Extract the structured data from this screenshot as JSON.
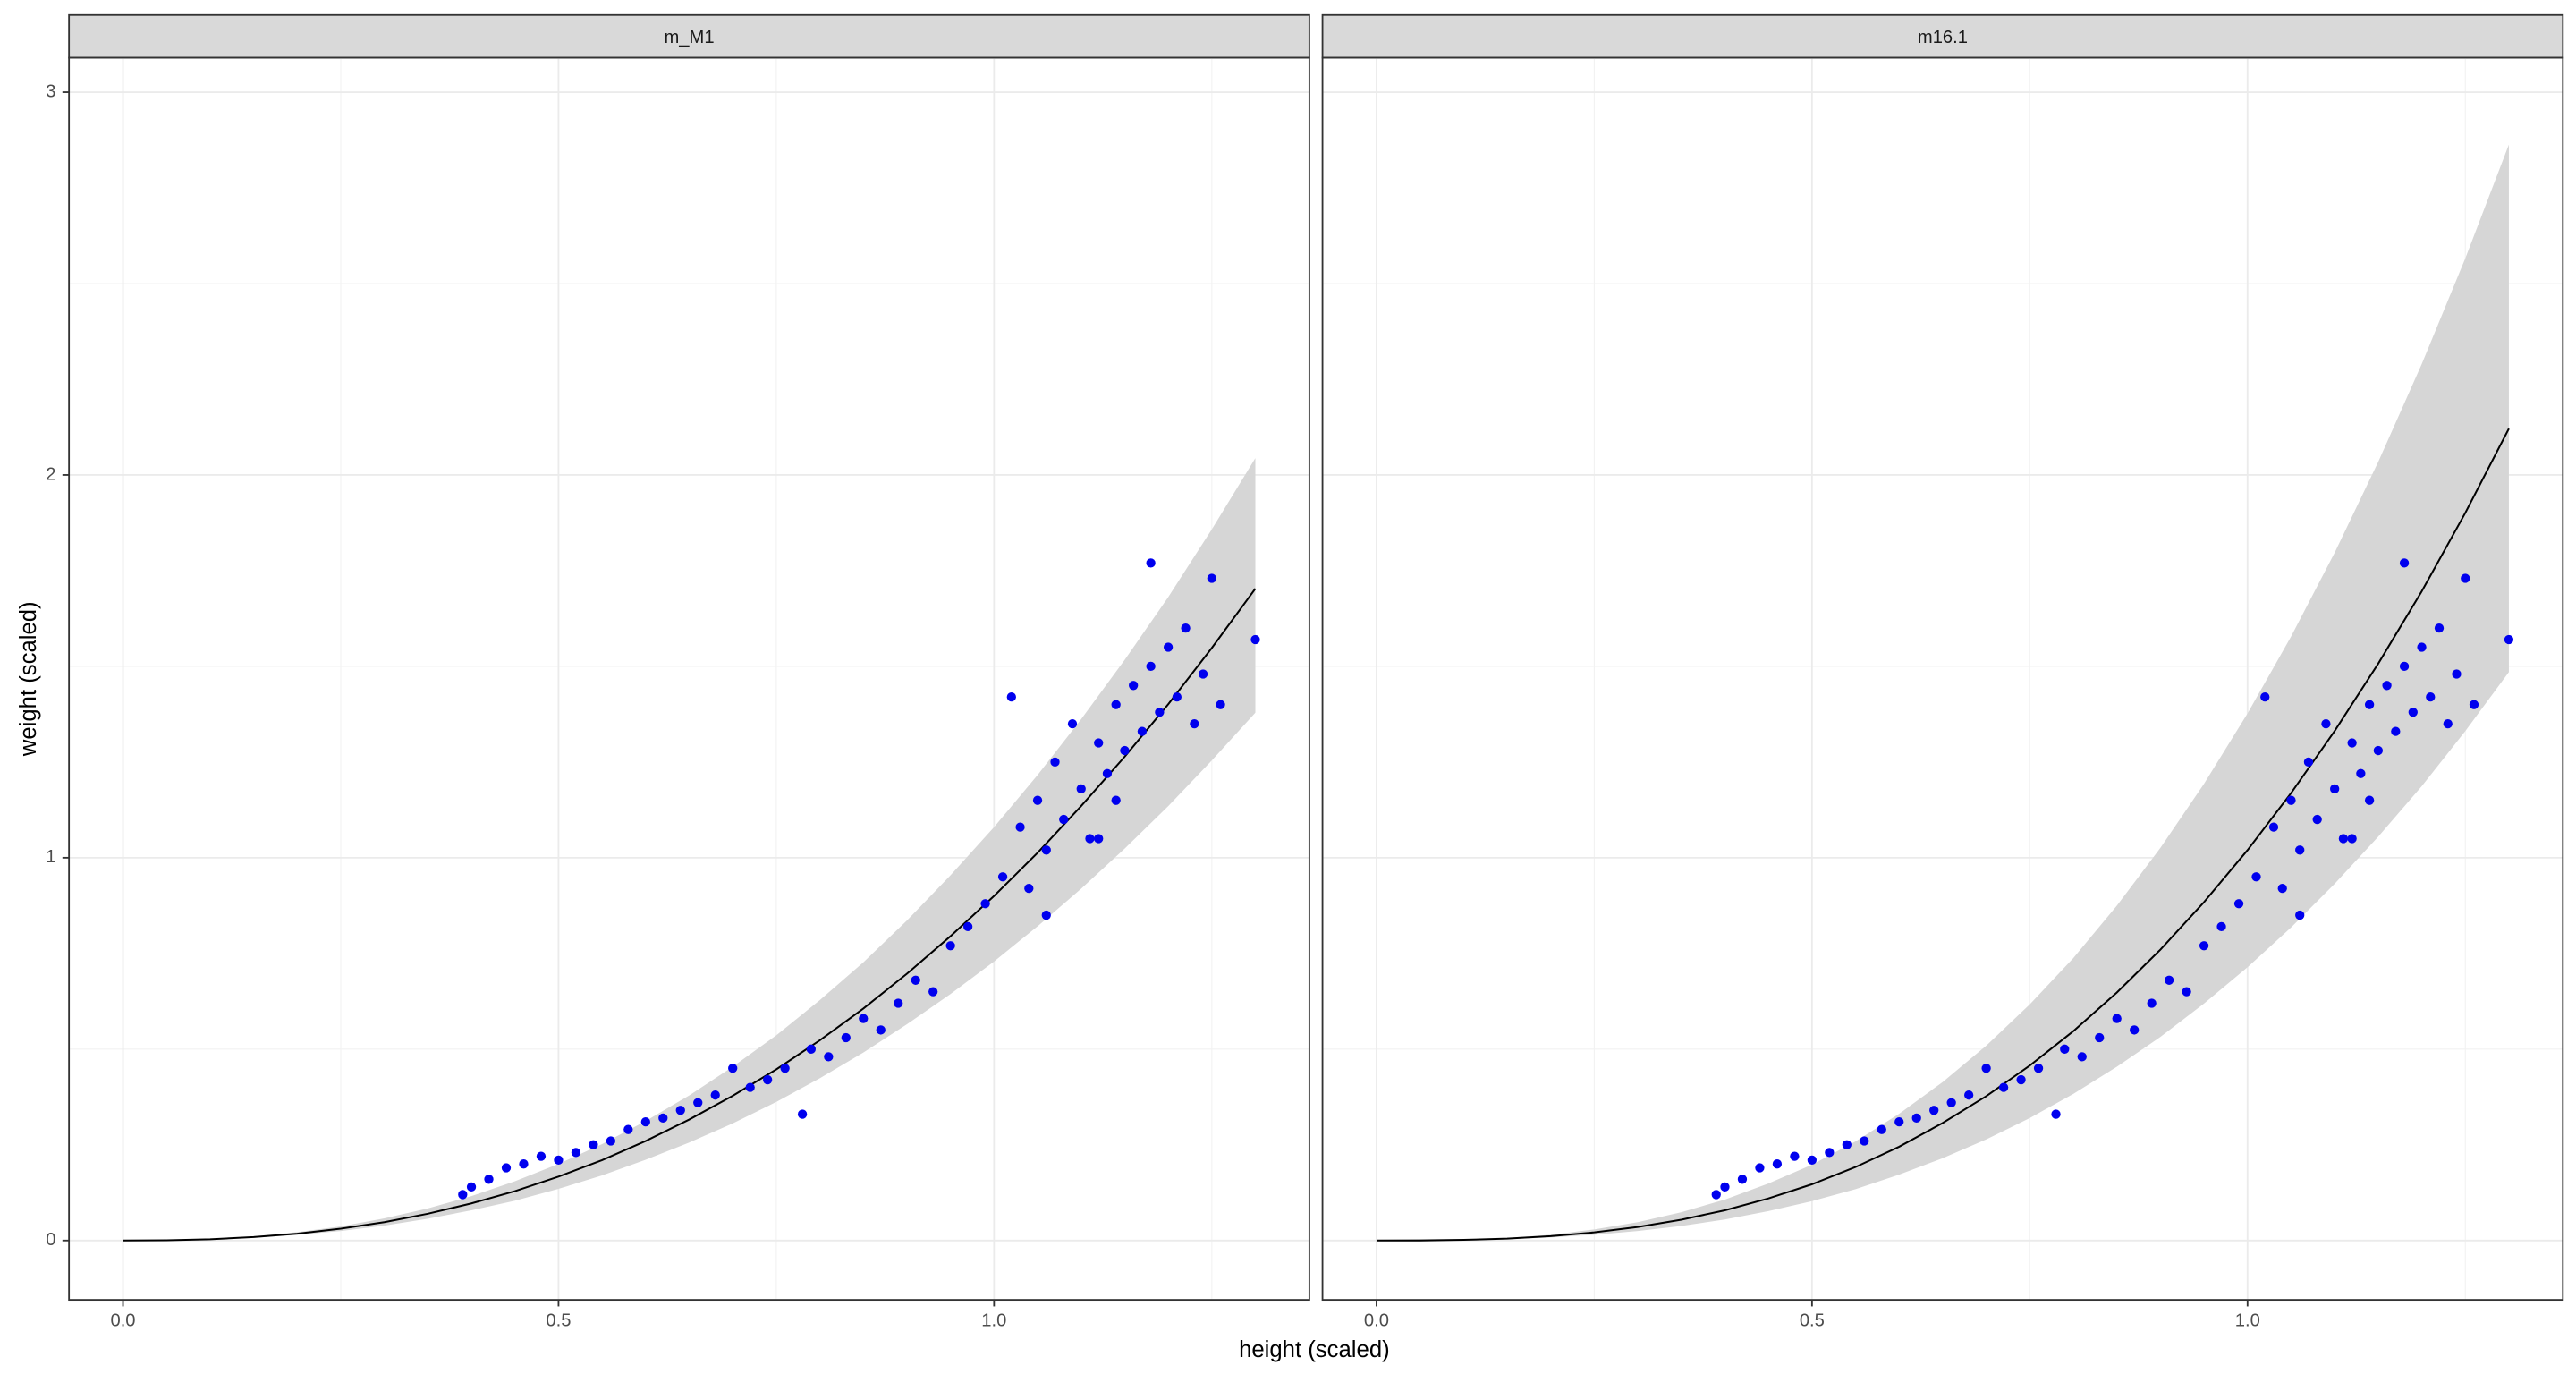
{
  "xlabel": "height (scaled)",
  "ylabel": "weight (scaled)",
  "chart_data": [
    {
      "type": "scatter",
      "title": "m_M1",
      "xlim": [
        -0.062,
        1.362
      ],
      "ylim": [
        -0.155,
        3.09
      ],
      "xticks": [
        {
          "value": 0,
          "label": "0.0"
        },
        {
          "value": 0.5,
          "label": "0.5"
        },
        {
          "value": 1,
          "label": "1.0"
        }
      ],
      "yticks": [
        0,
        1,
        2,
        3
      ],
      "grid": true,
      "points": {
        "color": "#0000ee",
        "x": [
          0.39,
          0.4,
          0.42,
          0.44,
          0.46,
          0.48,
          0.5,
          0.52,
          0.54,
          0.56,
          0.58,
          0.6,
          0.62,
          0.64,
          0.66,
          0.68,
          0.7,
          0.72,
          0.74,
          0.76,
          0.78,
          0.79,
          0.81,
          0.83,
          0.85,
          0.87,
          0.89,
          0.91,
          0.93,
          0.95,
          0.97,
          0.99,
          1.01,
          1.02,
          1.03,
          1.04,
          1.05,
          1.06,
          1.07,
          1.08,
          1.09,
          1.1,
          1.11,
          1.12,
          1.13,
          1.14,
          1.15,
          1.16,
          1.17,
          1.18,
          1.19,
          1.2,
          1.21,
          1.22,
          1.23,
          1.18,
          1.24,
          1.25,
          1.26,
          1.3,
          1.12,
          1.06,
          1.14
        ],
        "values": [
          0.12,
          0.14,
          0.16,
          0.19,
          0.2,
          0.22,
          0.21,
          0.23,
          0.25,
          0.26,
          0.29,
          0.31,
          0.32,
          0.34,
          0.36,
          0.38,
          0.45,
          0.4,
          0.42,
          0.45,
          0.33,
          0.5,
          0.48,
          0.53,
          0.58,
          0.55,
          0.62,
          0.68,
          0.65,
          0.77,
          0.82,
          0.88,
          0.95,
          1.42,
          1.08,
          0.92,
          1.15,
          1.02,
          1.25,
          1.1,
          1.35,
          1.18,
          1.05,
          1.3,
          1.22,
          1.4,
          1.28,
          1.45,
          1.33,
          1.5,
          1.38,
          1.55,
          1.42,
          1.6,
          1.35,
          1.77,
          1.48,
          1.73,
          1.4,
          1.57,
          1.05,
          0.85,
          1.15
        ]
      },
      "curve": {
        "line_color": "#000000",
        "band_color": "#d6d6d6",
        "x": [
          0,
          0.05,
          0.1,
          0.15,
          0.2,
          0.25,
          0.3,
          0.35,
          0.4,
          0.45,
          0.5,
          0.55,
          0.6,
          0.65,
          0.7,
          0.75,
          0.8,
          0.85,
          0.9,
          0.95,
          1,
          1.05,
          1.1,
          1.15,
          1.2,
          1.25,
          1.3
        ],
        "mean": [
          0,
          0.0006,
          0.0033,
          0.009,
          0.018,
          0.031,
          0.048,
          0.07,
          0.097,
          0.129,
          0.167,
          0.21,
          0.26,
          0.316,
          0.378,
          0.447,
          0.523,
          0.606,
          0.697,
          0.795,
          0.9,
          1.013,
          1.135,
          1.264,
          1.401,
          1.548,
          1.703
        ],
        "lower": [
          0,
          0.0005,
          0.0027,
          0.007,
          0.015,
          0.025,
          0.039,
          0.057,
          0.079,
          0.104,
          0.135,
          0.17,
          0.211,
          0.256,
          0.306,
          0.362,
          0.424,
          0.491,
          0.565,
          0.644,
          0.729,
          0.821,
          0.919,
          1.024,
          1.135,
          1.254,
          1.379
        ],
        "upper": [
          0,
          0.0007,
          0.004,
          0.011,
          0.022,
          0.037,
          0.058,
          0.084,
          0.116,
          0.155,
          0.2,
          0.252,
          0.312,
          0.379,
          0.454,
          0.536,
          0.628,
          0.727,
          0.836,
          0.954,
          1.08,
          1.216,
          1.362,
          1.517,
          1.681,
          1.858,
          2.044
        ]
      }
    },
    {
      "type": "scatter",
      "title": "m16.1",
      "xlim": [
        -0.062,
        1.362
      ],
      "ylim": [
        -0.155,
        3.09
      ],
      "xticks": [
        {
          "value": 0,
          "label": "0.0"
        },
        {
          "value": 0.5,
          "label": "0.5"
        },
        {
          "value": 1,
          "label": "1.0"
        }
      ],
      "grid": true,
      "points": {
        "color": "#0000ee",
        "x": [
          0.39,
          0.4,
          0.42,
          0.44,
          0.46,
          0.48,
          0.5,
          0.52,
          0.54,
          0.56,
          0.58,
          0.6,
          0.62,
          0.64,
          0.66,
          0.68,
          0.7,
          0.72,
          0.74,
          0.76,
          0.78,
          0.79,
          0.81,
          0.83,
          0.85,
          0.87,
          0.89,
          0.91,
          0.93,
          0.95,
          0.97,
          0.99,
          1.01,
          1.02,
          1.03,
          1.04,
          1.05,
          1.06,
          1.07,
          1.08,
          1.09,
          1.1,
          1.11,
          1.12,
          1.13,
          1.14,
          1.15,
          1.16,
          1.17,
          1.18,
          1.19,
          1.2,
          1.21,
          1.22,
          1.23,
          1.18,
          1.24,
          1.25,
          1.26,
          1.3,
          1.12,
          1.06,
          1.14
        ],
        "values": [
          0.12,
          0.14,
          0.16,
          0.19,
          0.2,
          0.22,
          0.21,
          0.23,
          0.25,
          0.26,
          0.29,
          0.31,
          0.32,
          0.34,
          0.36,
          0.38,
          0.45,
          0.4,
          0.42,
          0.45,
          0.33,
          0.5,
          0.48,
          0.53,
          0.58,
          0.55,
          0.62,
          0.68,
          0.65,
          0.77,
          0.82,
          0.88,
          0.95,
          1.42,
          1.08,
          0.92,
          1.15,
          1.02,
          1.25,
          1.1,
          1.35,
          1.18,
          1.05,
          1.3,
          1.22,
          1.4,
          1.28,
          1.45,
          1.33,
          1.5,
          1.38,
          1.55,
          1.42,
          1.6,
          1.35,
          1.77,
          1.48,
          1.73,
          1.4,
          1.57,
          1.05,
          0.85,
          1.15
        ]
      },
      "curve": {
        "line_color": "#000000",
        "band_color": "#d6d6d6",
        "x": [
          0,
          0.05,
          0.1,
          0.15,
          0.2,
          0.25,
          0.3,
          0.35,
          0.4,
          0.45,
          0.5,
          0.55,
          0.6,
          0.65,
          0.7,
          0.75,
          0.8,
          0.85,
          0.9,
          0.95,
          1,
          1.05,
          1.1,
          1.15,
          1.2,
          1.25,
          1.3
        ],
        "mean": [
          0,
          0.0002,
          0.0017,
          0.0051,
          0.0114,
          0.0213,
          0.0355,
          0.0545,
          0.079,
          0.11,
          0.147,
          0.192,
          0.245,
          0.307,
          0.377,
          0.457,
          0.547,
          0.648,
          0.76,
          0.884,
          1.02,
          1.169,
          1.331,
          1.507,
          1.696,
          1.901,
          2.121
        ],
        "lower": [
          0,
          0.0001,
          0.0012,
          0.0036,
          0.008,
          0.015,
          0.025,
          0.038,
          0.055,
          0.077,
          0.103,
          0.134,
          0.172,
          0.215,
          0.264,
          0.32,
          0.383,
          0.454,
          0.532,
          0.619,
          0.714,
          0.818,
          0.932,
          1.055,
          1.187,
          1.331,
          1.485
        ],
        "upper": [
          0,
          0.0003,
          0.0023,
          0.0069,
          0.015,
          0.029,
          0.048,
          0.074,
          0.107,
          0.149,
          0.198,
          0.259,
          0.331,
          0.414,
          0.509,
          0.617,
          0.738,
          0.875,
          1.026,
          1.193,
          1.377,
          1.578,
          1.797,
          2.034,
          2.29,
          2.566,
          2.863
        ]
      }
    }
  ]
}
